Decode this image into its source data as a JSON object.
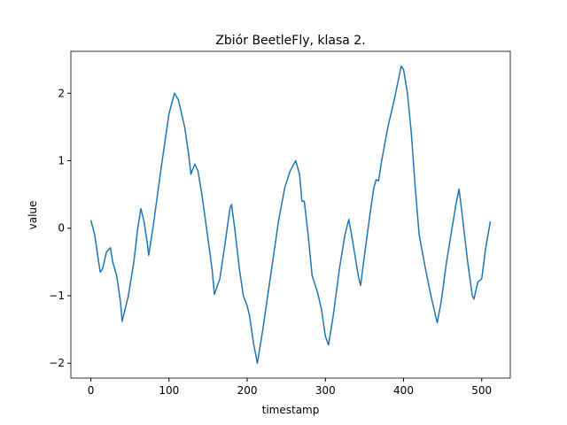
{
  "chart_data": {
    "type": "line",
    "title": "Zbiór BeetleFly, klasa 2.",
    "xlabel": "timestamp",
    "ylabel": "value",
    "x": [
      0,
      5,
      10,
      12,
      15,
      20,
      25,
      28,
      33,
      38,
      40,
      48,
      55,
      60,
      64,
      68,
      72,
      74,
      80,
      90,
      100,
      107,
      112,
      120,
      125,
      128,
      133,
      137,
      142,
      148,
      155,
      158,
      165,
      172,
      178,
      180,
      184,
      190,
      195,
      200,
      203,
      208,
      213,
      220,
      230,
      240,
      248,
      255,
      262,
      267,
      270,
      273,
      278,
      283,
      290,
      295,
      300,
      304,
      310,
      318,
      325,
      330,
      335,
      342,
      345,
      350,
      357,
      362,
      365,
      368,
      372,
      380,
      388,
      397,
      400,
      405,
      410,
      415,
      420,
      428,
      435,
      443,
      448,
      455,
      462,
      467,
      471,
      475,
      482,
      488,
      490,
      495,
      500,
      505,
      511
    ],
    "series": [
      {
        "name": "value",
        "color": "#1f77b4",
        "values": [
          0.12,
          -0.1,
          -0.5,
          -0.65,
          -0.6,
          -0.35,
          -0.29,
          -0.5,
          -0.7,
          -1.1,
          -1.38,
          -1.0,
          -0.5,
          0.0,
          0.29,
          0.1,
          -0.2,
          -0.4,
          0.05,
          0.9,
          1.7,
          2.0,
          1.9,
          1.5,
          1.1,
          0.8,
          0.95,
          0.85,
          0.5,
          0.0,
          -0.6,
          -0.98,
          -0.75,
          -0.2,
          0.3,
          0.35,
          0.0,
          -0.6,
          -1.0,
          -1.15,
          -1.3,
          -1.7,
          -2.0,
          -1.5,
          -0.7,
          0.1,
          0.6,
          0.85,
          1.0,
          0.8,
          0.4,
          0.4,
          -0.1,
          -0.7,
          -0.95,
          -1.2,
          -1.6,
          -1.73,
          -1.3,
          -0.6,
          -0.1,
          0.13,
          -0.2,
          -0.7,
          -0.85,
          -0.4,
          0.2,
          0.6,
          0.72,
          0.7,
          1.0,
          1.5,
          1.9,
          2.4,
          2.35,
          2.0,
          1.4,
          0.6,
          -0.1,
          -0.6,
          -1.0,
          -1.4,
          -1.1,
          -0.5,
          0.0,
          0.35,
          0.58,
          0.2,
          -0.5,
          -1.0,
          -1.05,
          -0.8,
          -0.75,
          -0.3,
          0.1
        ]
      }
    ],
    "xlim": [
      -25.55,
      536.55
    ],
    "ylim": [
      -2.22,
      2.62
    ],
    "xticks": [
      0,
      100,
      200,
      300,
      400,
      500
    ],
    "yticks": [
      {
        "value": -2,
        "label": "−2"
      },
      {
        "value": -1,
        "label": "−1"
      },
      0,
      1,
      2
    ]
  }
}
